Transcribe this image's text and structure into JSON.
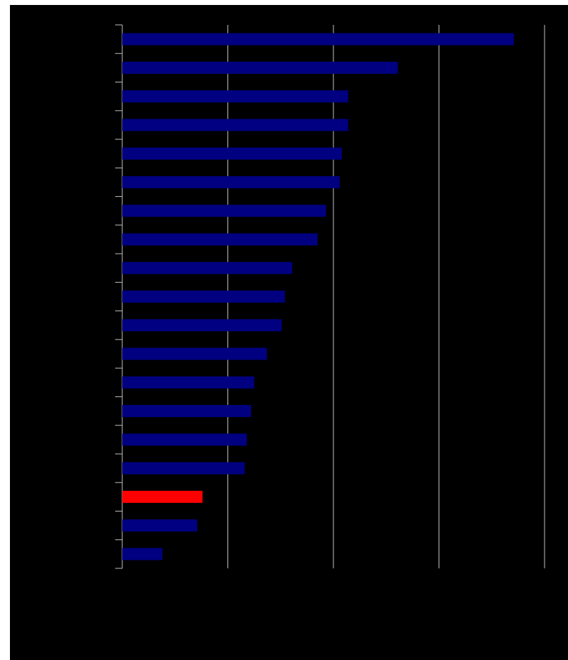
{
  "chart_data": {
    "type": "bar",
    "orientation": "horizontal",
    "title": "",
    "xlabel": "",
    "ylabel": "",
    "xlim": [
      0,
      4
    ],
    "grid": true,
    "legend": "none",
    "background_color": "#000000",
    "bar_color": "#000080",
    "highlight_color": "#ff0000",
    "gridline_color": "#c0c0c0",
    "axis_color": "#c0c0c0",
    "categories": [
      "",
      "",
      "",
      "",
      "",
      "",
      "",
      "",
      "",
      "",
      "",
      "",
      "",
      "",
      "",
      "",
      "",
      "",
      ""
    ],
    "series": [
      {
        "values": [
          3.71,
          2.61,
          2.14,
          2.14,
          2.08,
          2.06,
          1.93,
          1.85,
          1.61,
          1.54,
          1.51,
          1.37,
          1.25,
          1.22,
          1.18,
          1.16,
          0.76,
          0.71,
          0.38
        ],
        "highlight_index": 16
      }
    ]
  }
}
